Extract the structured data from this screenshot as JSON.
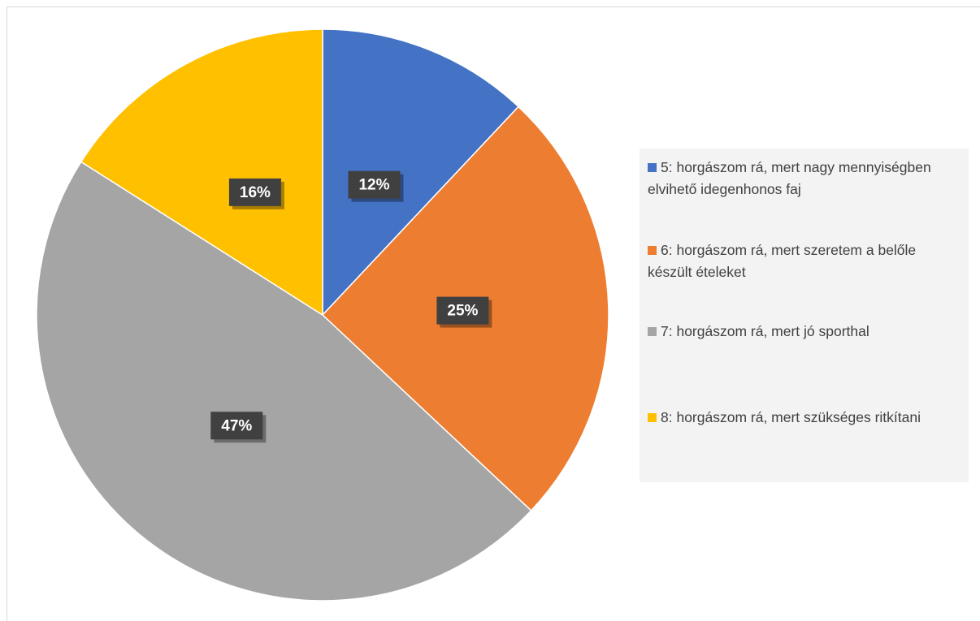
{
  "chart_data": {
    "type": "pie",
    "categories": [
      "5: horgászom rá, mert nagy mennyiségben elvihető idegenhonos faj",
      "6: horgászom rá, mert szeretem a belőle készült ételeket",
      "7: horgászom rá, mert jó sporthal",
      "8: horgászom rá, mert szükséges ritkítani"
    ],
    "values": [
      12,
      25,
      47,
      16
    ],
    "value_labels": [
      "12%",
      "25%",
      "47%",
      "16%"
    ],
    "colors": [
      "#4472c4",
      "#ed7d31",
      "#a5a5a5",
      "#ffc000"
    ],
    "legend": "right"
  }
}
